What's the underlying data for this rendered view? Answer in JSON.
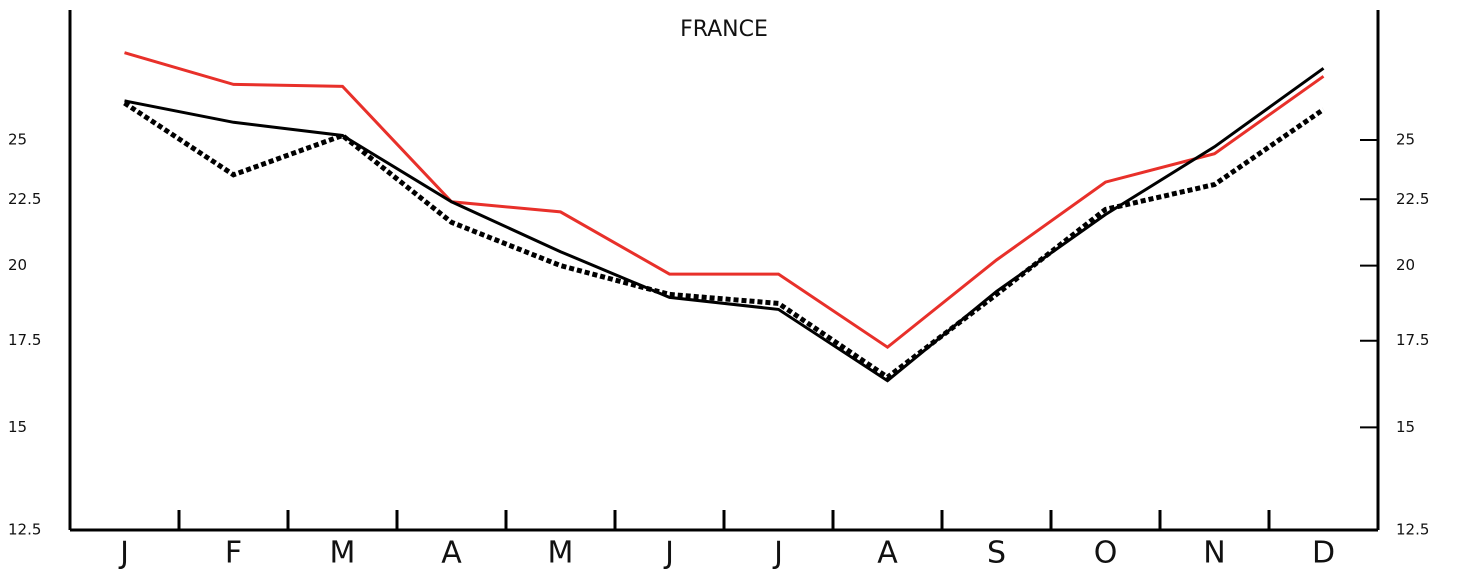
{
  "chart_data": {
    "type": "line",
    "title": "FRANCE",
    "categories": [
      "J",
      "F",
      "M",
      "A",
      "M",
      "J",
      "J",
      "A",
      "S",
      "O",
      "N",
      "D"
    ],
    "series": [
      {
        "color": "#e8302a",
        "style": "solid",
        "values": [
          29.2,
          27.6,
          27.5,
          22.4,
          22.0,
          19.7,
          19.7,
          17.3,
          20.2,
          23.2,
          24.4,
          28.0
        ]
      },
      {
        "color": "#000000",
        "style": "solid",
        "values": [
          26.8,
          25.8,
          25.2,
          22.4,
          20.5,
          18.9,
          18.5,
          16.3,
          19.1,
          21.9,
          24.7,
          28.4
        ]
      },
      {
        "color": "#000000",
        "style": "dashed",
        "values": [
          26.7,
          23.5,
          25.2,
          21.6,
          20.0,
          19.0,
          18.7,
          16.4,
          19.0,
          22.1,
          23.1,
          26.4
        ]
      }
    ],
    "ylim": [
      12.5,
      31.5
    ],
    "log_y": true,
    "yticks": [
      {
        "value": 12.5,
        "label": "12.5"
      },
      15,
      {
        "value": 17.5,
        "label": "17.5"
      },
      20,
      {
        "value": 22.5,
        "label": "22.5"
      },
      25
    ],
    "grid": false
  }
}
